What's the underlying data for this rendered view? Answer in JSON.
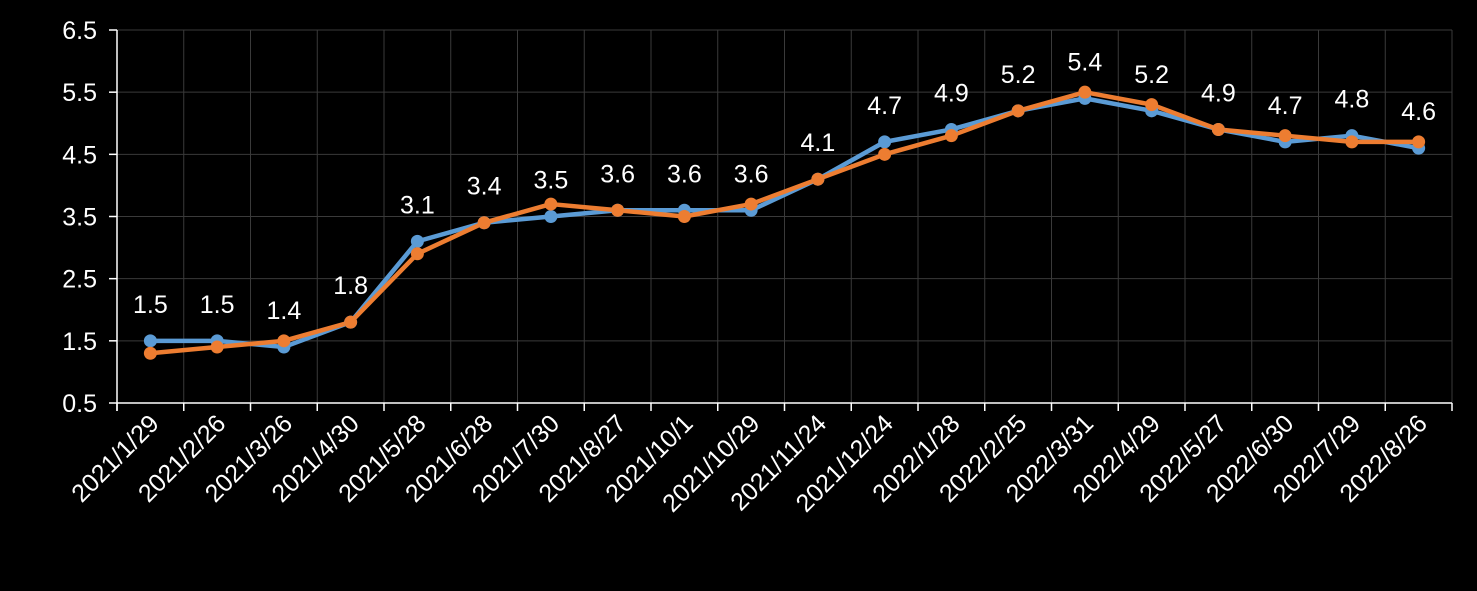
{
  "chart_data": {
    "type": "line",
    "title": "",
    "xlabel": "",
    "ylabel": "",
    "categories": [
      "2021/1/29",
      "2021/2/26",
      "2021/3/26",
      "2021/4/30",
      "2021/5/28",
      "2021/6/28",
      "2021/7/30",
      "2021/8/27",
      "2021/10/1",
      "2021/10/29",
      "2021/11/24",
      "2021/12/24",
      "2022/1/28",
      "2022/2/25",
      "2022/3/31",
      "2022/4/29",
      "2022/5/27",
      "2022/6/30",
      "2022/7/29",
      "2022/8/26"
    ],
    "ylim": [
      0.5,
      6.5
    ],
    "yticks": [
      "0.5",
      "1.5",
      "2.5",
      "3.5",
      "4.5",
      "5.5",
      "6.5"
    ],
    "grid": true,
    "legend": "none",
    "series": [
      {
        "color": "#5B9BD5",
        "values": [
          1.5,
          1.5,
          1.4,
          1.8,
          3.1,
          3.4,
          3.5,
          3.6,
          3.6,
          3.6,
          4.1,
          4.7,
          4.9,
          5.2,
          5.4,
          5.2,
          4.9,
          4.7,
          4.8,
          4.6
        ],
        "data_labels": [
          "1.5",
          "1.5",
          "1.4",
          "1.8",
          "3.1",
          "3.4",
          "3.5",
          "3.6",
          "3.6",
          "3.6",
          "4.1",
          "4.7",
          "4.9",
          "5.2",
          "5.4",
          "5.2",
          "4.9",
          "4.7",
          "4.8",
          "4.6"
        ]
      },
      {
        "color": "#ED7D31",
        "values": [
          1.3,
          1.4,
          1.5,
          1.8,
          2.9,
          3.4,
          3.7,
          3.6,
          3.5,
          3.7,
          4.1,
          4.5,
          4.8,
          5.2,
          5.5,
          5.3,
          4.9,
          4.8,
          4.7,
          4.7
        ]
      }
    ],
    "background": "#000000",
    "grid_color": "#3a3a3a",
    "text_color": "#ffffff"
  }
}
